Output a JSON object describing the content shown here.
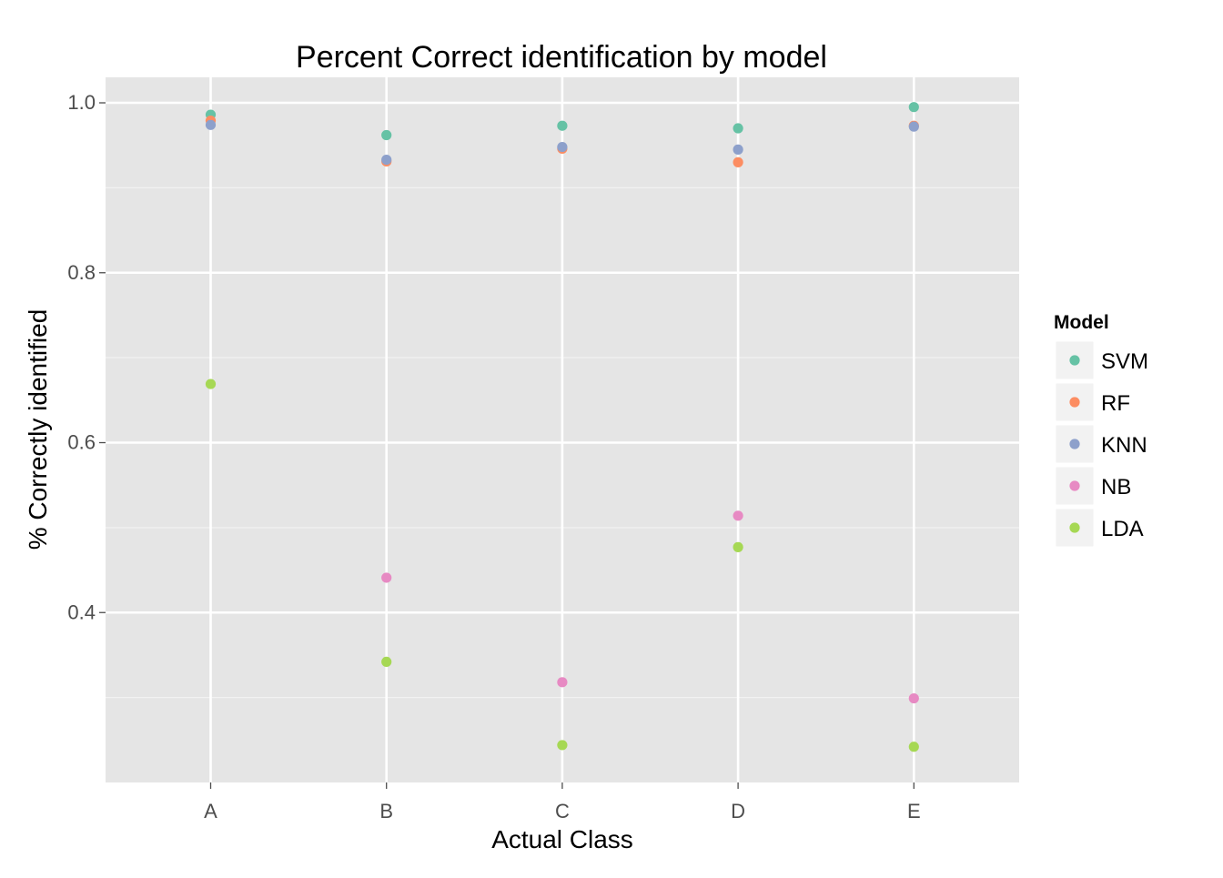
{
  "chart_data": {
    "type": "scatter",
    "title": "Percent Correct identification by model",
    "xlabel": "Actual Class",
    "ylabel": "% Correctly identified",
    "categories": [
      "A",
      "B",
      "C",
      "D",
      "E"
    ],
    "ylim": [
      0.2,
      1.03
    ],
    "yticks": [
      0.4,
      0.6,
      0.8,
      1.0
    ],
    "ytick_labels": [
      "0.4",
      "0.6",
      "0.8",
      "1.0"
    ],
    "grid": true,
    "legend": {
      "title": "Model",
      "position": "right"
    },
    "series": [
      {
        "name": "SVM",
        "color": "#66c2a5",
        "values": [
          0.986,
          0.962,
          0.973,
          0.97,
          0.995
        ]
      },
      {
        "name": "RF",
        "color": "#fc8d62",
        "values": [
          0.979,
          0.931,
          0.946,
          0.93,
          0.973
        ]
      },
      {
        "name": "KNN",
        "color": "#8da0cb",
        "values": [
          0.974,
          0.933,
          0.948,
          0.945,
          0.972
        ]
      },
      {
        "name": "NB",
        "color": "#e78ac3",
        "values": [
          null,
          0.441,
          0.318,
          0.514,
          0.299
        ]
      },
      {
        "name": "LDA",
        "color": "#a6d854",
        "values": [
          0.669,
          0.342,
          0.244,
          0.477,
          0.242
        ]
      }
    ]
  }
}
